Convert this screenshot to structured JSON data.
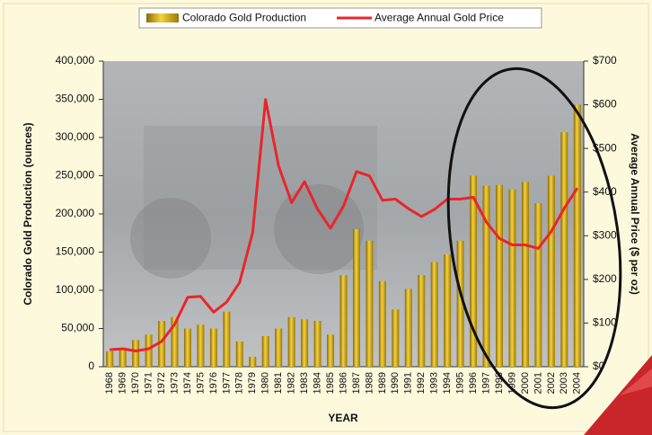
{
  "chart_data": {
    "type": "bar-line",
    "x_label": "YEAR",
    "y_label": "Colorado Gold Production (ounces)",
    "y2_label": "Average Annual Price ($ per oz)",
    "categories": [
      "1968",
      "1969",
      "1970",
      "1971",
      "1972",
      "1973",
      "1974",
      "1975",
      "1976",
      "1977",
      "1978",
      "1979",
      "1980",
      "1981",
      "1982",
      "1983",
      "1984",
      "1985",
      "1986",
      "1987",
      "1988",
      "1989",
      "1990",
      "1991",
      "1992",
      "1993",
      "1994",
      "1995",
      "1996",
      "1997",
      "1998",
      "1999",
      "2000",
      "2001",
      "2002",
      "2003",
      "2004"
    ],
    "series": [
      {
        "name": "Colorado Gold Production",
        "type": "bar",
        "color": "#d4a80c",
        "values": [
          20000,
          25000,
          35000,
          42000,
          60000,
          65000,
          50000,
          55000,
          50000,
          72000,
          33000,
          13000,
          40000,
          50000,
          65000,
          62000,
          60000,
          42000,
          120000,
          180000,
          165000,
          112000,
          75000,
          102000,
          120000,
          137000,
          147000,
          165000,
          250000,
          237000,
          238000,
          232000,
          242000,
          214000,
          250000,
          307000,
          343000
        ]
      },
      {
        "name": "Average Annual Gold Price",
        "type": "line",
        "axis": "y2",
        "color": "#e8262a",
        "values": [
          39,
          41,
          36,
          41,
          58,
          97,
          159,
          161,
          125,
          148,
          193,
          307,
          612,
          460,
          376,
          424,
          361,
          317,
          368,
          447,
          437,
          381,
          384,
          362,
          344,
          360,
          384,
          384,
          388,
          331,
          294,
          279,
          279,
          271,
          310,
          363,
          409
        ]
      }
    ],
    "ylim": [
      0,
      400000
    ],
    "yticks": [
      0,
      {
        "value": 50000,
        "label": "50,000"
      },
      {
        "value": 100000,
        "label": "100,000"
      },
      {
        "value": 150000,
        "label": "150,000"
      },
      {
        "value": 200000,
        "label": "200,000"
      },
      {
        "value": 250000,
        "label": "250,000"
      },
      {
        "value": 300000,
        "label": "300,000"
      },
      {
        "value": 350000,
        "label": "350,000"
      },
      {
        "value": 400000,
        "label": "400,000"
      }
    ],
    "y2lim": [
      0,
      700
    ],
    "y2ticks": [
      {
        "value": 0,
        "label": "$0"
      },
      {
        "value": 100,
        "label": "$100"
      },
      {
        "value": 200,
        "label": "$200"
      },
      {
        "value": 300,
        "label": "$300"
      },
      {
        "value": 400,
        "label": "$400"
      },
      {
        "value": 500,
        "label": "$500"
      },
      {
        "value": 600,
        "label": "$600"
      },
      {
        "value": 700,
        "label": "$700"
      }
    ],
    "grid": false,
    "legend": "top"
  }
}
